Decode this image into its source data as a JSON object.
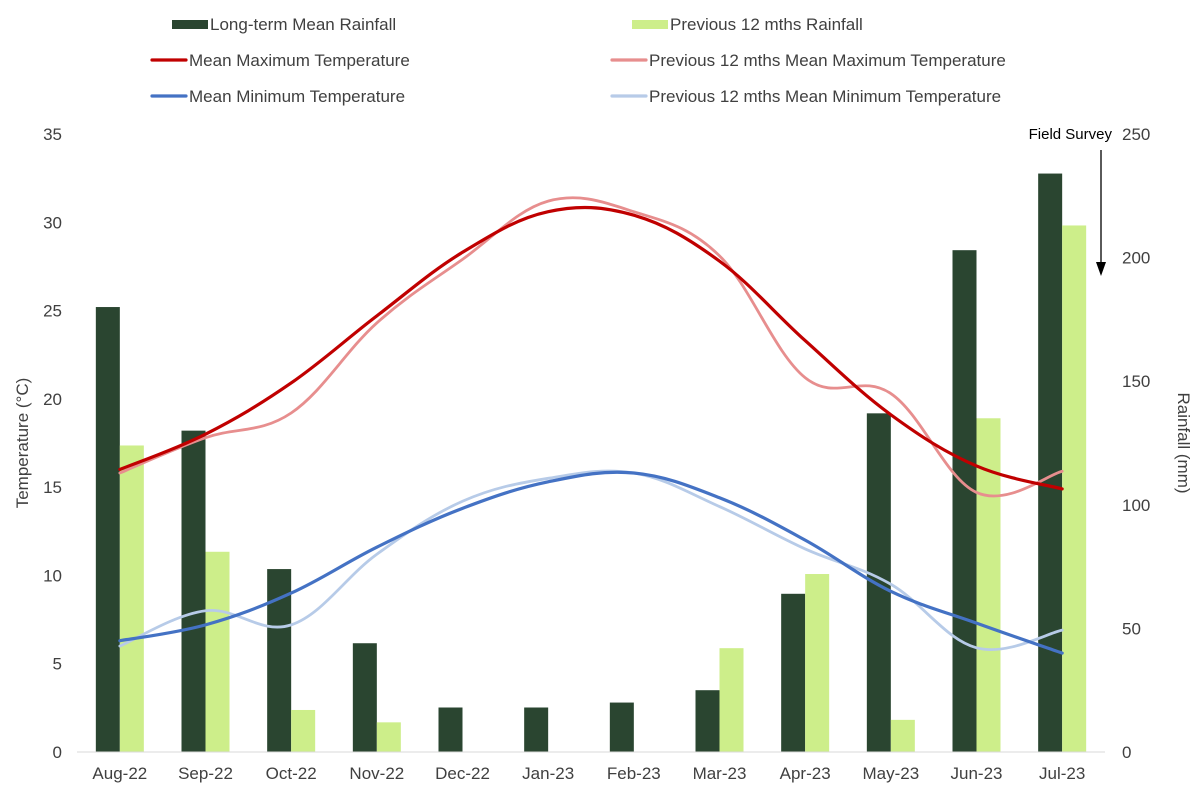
{
  "colors": {
    "long_term_rain": "#2a4530",
    "prev_rain": "#cdee8a",
    "mean_max": "#c00000",
    "prev_max": "#e78e8e",
    "mean_min": "#4472c4",
    "prev_min": "#b7cbe8",
    "axis_text": "#404040",
    "annotation": "#000000"
  },
  "chart_data": {
    "type": "bar",
    "categories": [
      "Aug-22",
      "Sep-22",
      "Oct-22",
      "Nov-22",
      "Dec-22",
      "Jan-23",
      "Feb-23",
      "Mar-23",
      "Apr-23",
      "May-23",
      "Jun-23",
      "Jul-23"
    ],
    "ylabel": "Temperature (°C)",
    "y2label": "Rainfall (mm)",
    "ylim": [
      0,
      35
    ],
    "y2lim": [
      0,
      250
    ],
    "yticks": [
      0,
      5,
      10,
      15,
      20,
      25,
      30,
      35
    ],
    "y2ticks": [
      0,
      50,
      100,
      150,
      200,
      250
    ],
    "grid": false,
    "legend_position": "top",
    "bar_series": [
      {
        "name": "Long-term Mean Rainfall",
        "color_key": "long_term_rain",
        "values": [
          180,
          130,
          74,
          44,
          18,
          18,
          20,
          25,
          64,
          137,
          203,
          234
        ]
      },
      {
        "name": "Previous 12 mths Rainfall",
        "color_key": "prev_rain",
        "values": [
          124,
          81,
          17,
          12,
          0,
          0,
          0,
          42,
          72,
          13,
          135,
          213
        ]
      }
    ],
    "line_series": [
      {
        "name": "Mean Maximum Temperature",
        "color_key": "mean_max",
        "width": 3.2,
        "values": [
          16.0,
          18.0,
          20.9,
          24.7,
          28.3,
          30.6,
          30.4,
          27.8,
          23.3,
          19.1,
          16.2,
          14.9
        ]
      },
      {
        "name": "Previous 12 mths Mean Maximum Temperature",
        "color_key": "prev_max",
        "width": 2.8,
        "values": [
          15.8,
          17.8,
          19.2,
          24.3,
          27.9,
          31.2,
          30.6,
          28.1,
          21.2,
          20.3,
          14.7,
          15.9
        ]
      },
      {
        "name": "Mean Minimum Temperature",
        "color_key": "mean_min",
        "width": 3.2,
        "values": [
          6.3,
          7.2,
          9.0,
          11.6,
          13.8,
          15.3,
          15.8,
          14.4,
          12.0,
          9.1,
          7.3,
          5.6
        ]
      },
      {
        "name": "Previous 12 mths Mean Minimum Temperature",
        "color_key": "prev_min",
        "width": 2.8,
        "values": [
          6.0,
          8.0,
          7.2,
          11.2,
          14.2,
          15.5,
          15.8,
          13.9,
          11.5,
          9.5,
          5.9,
          6.9
        ]
      }
    ],
    "legend": [
      {
        "name": "Long-term Mean Rainfall",
        "kind": "bar",
        "color_key": "long_term_rain"
      },
      {
        "name": "Previous 12 mths Rainfall",
        "kind": "bar",
        "color_key": "prev_rain"
      },
      {
        "name": "Mean Maximum Temperature",
        "kind": "line",
        "color_key": "mean_max"
      },
      {
        "name": "Previous 12 mths Mean Maximum Temperature",
        "kind": "line",
        "color_key": "prev_max"
      },
      {
        "name": "Mean Minimum Temperature",
        "kind": "line",
        "color_key": "mean_min"
      },
      {
        "name": "Previous 12 mths Mean Minimum Temperature",
        "kind": "line",
        "color_key": "prev_min"
      }
    ],
    "annotations": [
      {
        "text": "Field Survey",
        "category": "Jul-23",
        "arrow": "down"
      }
    ]
  }
}
